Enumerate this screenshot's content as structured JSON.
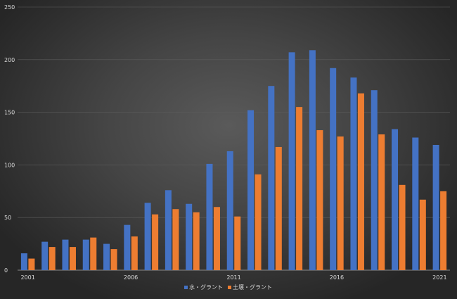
{
  "chart_data": {
    "type": "bar",
    "title": "",
    "xlabel": "",
    "ylabel": "",
    "ylim": [
      0,
      250
    ],
    "yticks": [
      0,
      50,
      100,
      150,
      200,
      250
    ],
    "ytick_labels": [
      "0",
      "50",
      "100",
      "150",
      "200",
      "250"
    ],
    "grid": true,
    "legend_position": "bottom",
    "categories": [
      "2001",
      "2002",
      "2003",
      "2004",
      "2005",
      "2006",
      "2007",
      "2008",
      "2009",
      "2010",
      "2011",
      "2012",
      "2013",
      "2014",
      "2015",
      "2016",
      "2017",
      "2018",
      "2019",
      "2020",
      "2021"
    ],
    "x_tick_labels": [
      {
        "index": 0,
        "label": "2001"
      },
      {
        "index": 5,
        "label": "2006"
      },
      {
        "index": 10,
        "label": "2011"
      },
      {
        "index": 15,
        "label": "2016"
      },
      {
        "index": 20,
        "label": "2021"
      }
    ],
    "series": [
      {
        "name": "水・グラント",
        "color": "#4472c4",
        "values": [
          16,
          27,
          29,
          29,
          25,
          43,
          64,
          76,
          63,
          101,
          113,
          152,
          175,
          207,
          209,
          192,
          183,
          171,
          134,
          126,
          119
        ]
      },
      {
        "name": "土壌・グラント",
        "color": "#ed7d31",
        "values": [
          11,
          22,
          22,
          31,
          20,
          32,
          53,
          58,
          55,
          60,
          51,
          91,
          117,
          155,
          133,
          127,
          168,
          129,
          81,
          67,
          75
        ]
      }
    ]
  }
}
